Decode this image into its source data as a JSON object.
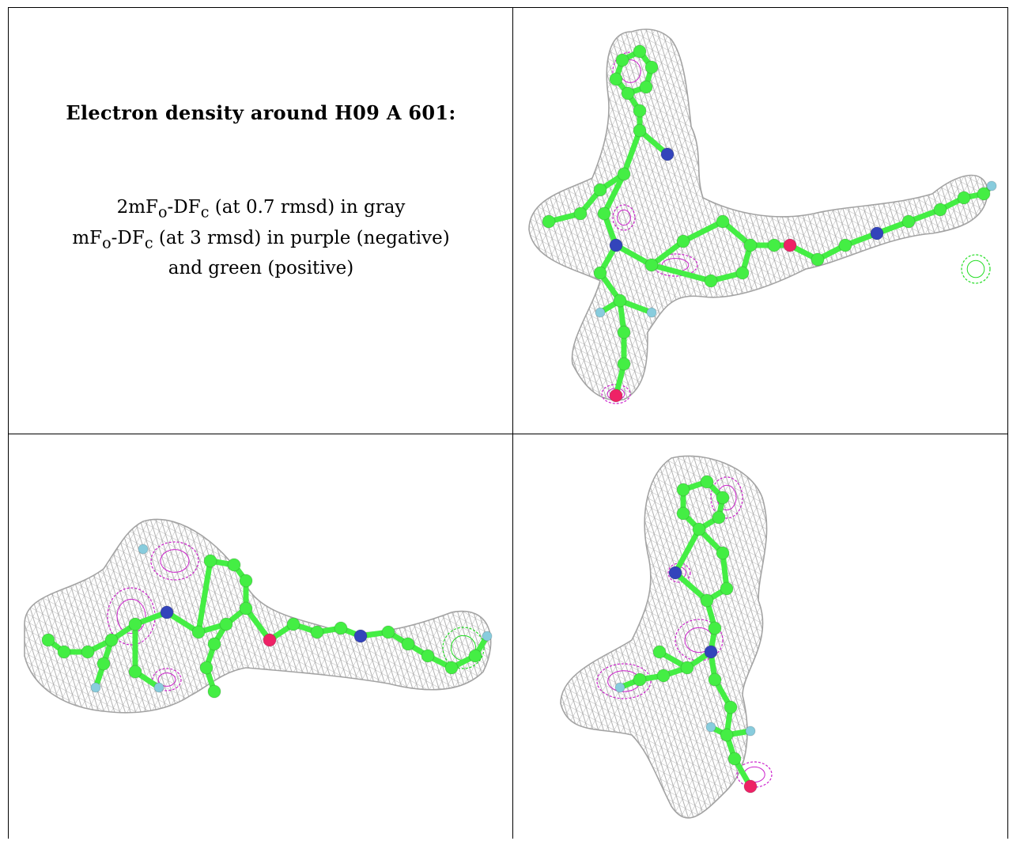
{
  "caption": {
    "heading": "Electron density around H09 A 601:",
    "line1": "2mFₒ-DF𝒸 (at 0.7 rmsd) in gray",
    "line1_parts": {
      "a": "2mF",
      "sub_o": "o",
      "b": "-DF",
      "sub_c": "c",
      "c": " (at 0.7 rmsd) in gray"
    },
    "line2_parts": {
      "a": "mF",
      "sub_o": "o",
      "b": "-DF",
      "sub_c": "c",
      "c": " (at 3 rmsd) in purple (negative)"
    },
    "line3": "and green (positive)"
  },
  "colors": {
    "mesh": "#9a9a9a",
    "negative": "#cc22cc",
    "positive": "#22dd22",
    "carbon": "#44ee44",
    "nitrogen": "#3344bb",
    "oxygen": "#ee2266",
    "fluorine": "#88ccdd"
  },
  "panels": [
    "view-1",
    "view-2",
    "view-3"
  ]
}
